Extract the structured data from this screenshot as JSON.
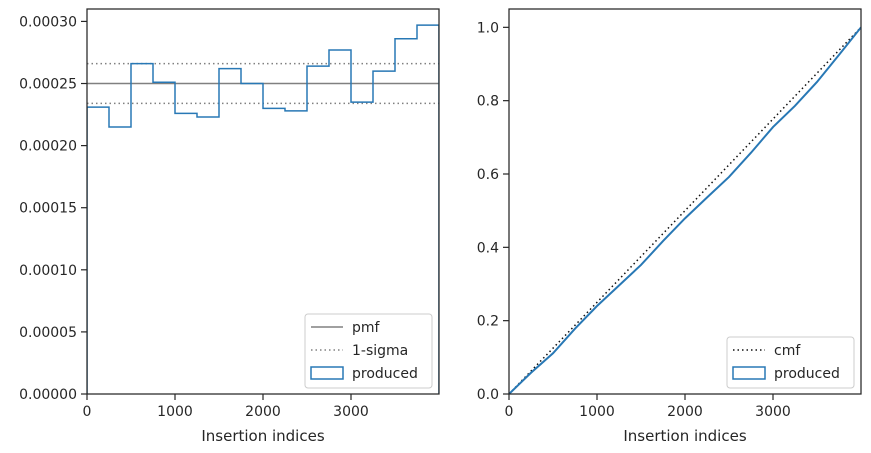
{
  "chart_data": [
    {
      "type": "histogram-step",
      "xlabel": "Insertion indices",
      "ylabel": "",
      "xlim": [
        0,
        4000
      ],
      "ylim": [
        0,
        0.00031
      ],
      "xticks": [
        0,
        1000,
        2000,
        3000
      ],
      "xtick_labels": [
        "0",
        "1000",
        "2000",
        "3000"
      ],
      "yticks": [
        0,
        5e-05,
        0.0001,
        0.00015,
        0.0002,
        0.00025,
        0.0003
      ],
      "ytick_labels": [
        "0.00000",
        "0.00005",
        "0.00010",
        "0.00015",
        "0.00020",
        "0.00025",
        "0.00030"
      ],
      "grid": false,
      "legend": "lower-right",
      "lines": [
        {
          "name": "pmf",
          "y": 0.00025,
          "style": "solid",
          "color": "#808080"
        },
        {
          "name": "1-sigma",
          "y": [
            0.000234,
            0.000266
          ],
          "style": "dotted",
          "color": "#808080"
        }
      ],
      "series": [
        {
          "name": "produced",
          "color": "#2878b5",
          "bin_edges": [
            0,
            250,
            500,
            750,
            1000,
            1250,
            1500,
            1750,
            2000,
            2250,
            2500,
            2750,
            3000,
            3250,
            3500,
            3750,
            4000
          ],
          "values": [
            0.000231,
            0.000215,
            0.000266,
            0.000251,
            0.000226,
            0.000223,
            0.000262,
            0.00025,
            0.00023,
            0.000228,
            0.000264,
            0.000277,
            0.000235,
            0.00026,
            0.000286,
            0.000297
          ]
        }
      ]
    },
    {
      "type": "line",
      "xlabel": "Insertion indices",
      "ylabel": "",
      "xlim": [
        0,
        4000
      ],
      "ylim": [
        0,
        1.05
      ],
      "xticks": [
        0,
        1000,
        2000,
        3000
      ],
      "xtick_labels": [
        "0",
        "1000",
        "2000",
        "3000"
      ],
      "yticks": [
        0,
        0.2,
        0.4,
        0.6,
        0.8,
        1.0
      ],
      "ytick_labels": [
        "0.0",
        "0.2",
        "0.4",
        "0.6",
        "0.8",
        "1.0"
      ],
      "grid": false,
      "legend": "lower-right",
      "series": [
        {
          "name": "cmf",
          "style": "dotted",
          "color": "#111111",
          "x": [
            0,
            4000
          ],
          "y": [
            0,
            1
          ]
        },
        {
          "name": "produced",
          "style": "solid",
          "color": "#2878b5",
          "x": [
            0,
            250,
            500,
            750,
            1000,
            1250,
            1500,
            1750,
            2000,
            2250,
            2500,
            2750,
            3000,
            3250,
            3500,
            3750,
            4000
          ],
          "y": [
            0,
            0.058,
            0.111,
            0.178,
            0.24,
            0.296,
            0.352,
            0.417,
            0.479,
            0.536,
            0.592,
            0.658,
            0.728,
            0.786,
            0.851,
            0.925,
            1.0
          ]
        }
      ]
    }
  ]
}
